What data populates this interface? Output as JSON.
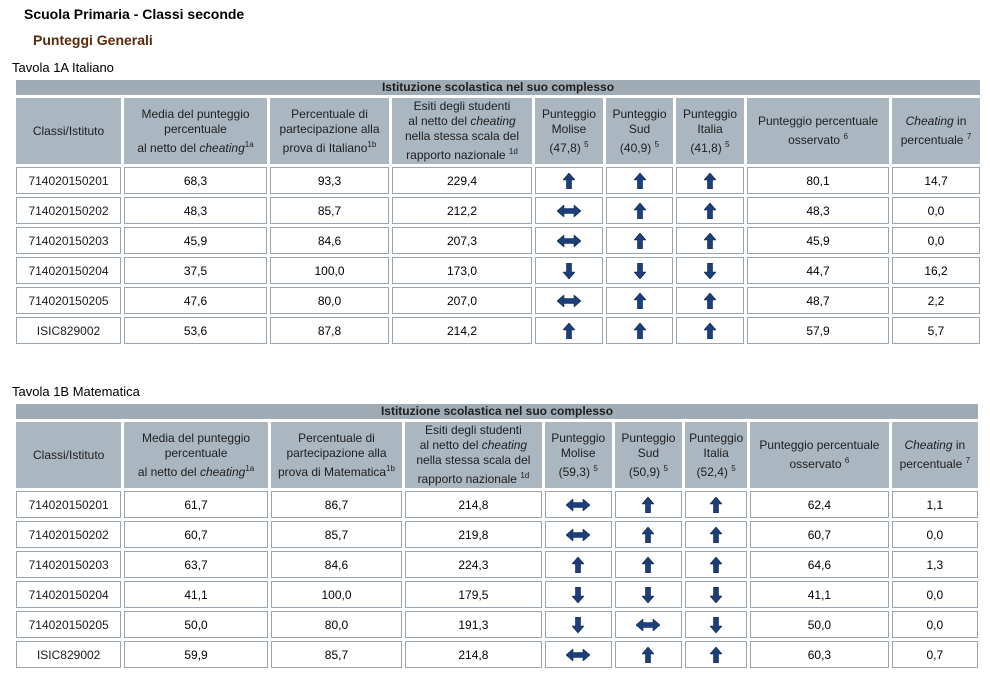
{
  "page": {
    "title": "Scuola Primaria - Classi seconde",
    "section": "Punteggi Generali"
  },
  "tables": [
    {
      "caption": "Tavola 1A Italiano",
      "banner": "Istituzione scolastica nel suo complesso",
      "headers": {
        "col1": "Classi/Istituto",
        "col2_a": "Media del punteggio",
        "col2_b": "percentuale",
        "col2_c": "al netto del ",
        "col2_em": "cheating",
        "col2_sup": "1a",
        "col3_a": "Percentuale di",
        "col3_b": "partecipazione alla",
        "col3_c": "prova di Italiano",
        "col3_sup": "1b",
        "col4_a": "Esiti degli studenti",
        "col4_b": "al netto del ",
        "col4_em": "cheating",
        "col4_c": "nella stessa scala del",
        "col4_d": "rapporto nazionale",
        "col4_sup": "1d",
        "col5_a": "Punteggio",
        "col5_b": "Molise",
        "col5_c": "(47,8)",
        "col5_sup": "5",
        "col6_a": "Punteggio",
        "col6_b": "Sud",
        "col6_c": "(40,9)",
        "col6_sup": "5",
        "col7_a": "Punteggio",
        "col7_b": "Italia",
        "col7_c": "(41,8)",
        "col7_sup": "5",
        "col8_a": "Punteggio percentuale",
        "col8_b": "osservato",
        "col8_sup": "6",
        "col9_em": "Cheating",
        "col9_a": " in",
        "col9_b": "percentuale",
        "col9_sup": "7"
      },
      "rows": [
        {
          "name": "714020150201",
          "media": "68,3",
          "partecipazione": "93,3",
          "esiti": "229,4",
          "molise": "up",
          "sud": "up",
          "italia": "up",
          "osservato": "80,1",
          "cheating": "14,7"
        },
        {
          "name": "714020150202",
          "media": "48,3",
          "partecipazione": "85,7",
          "esiti": "212,2",
          "molise": "equal",
          "sud": "up",
          "italia": "up",
          "osservato": "48,3",
          "cheating": "0,0"
        },
        {
          "name": "714020150203",
          "media": "45,9",
          "partecipazione": "84,6",
          "esiti": "207,3",
          "molise": "equal",
          "sud": "up",
          "italia": "up",
          "osservato": "45,9",
          "cheating": "0,0"
        },
        {
          "name": "714020150204",
          "media": "37,5",
          "partecipazione": "100,0",
          "esiti": "173,0",
          "molise": "down",
          "sud": "down",
          "italia": "down",
          "osservato": "44,7",
          "cheating": "16,2"
        },
        {
          "name": "714020150205",
          "media": "47,6",
          "partecipazione": "80,0",
          "esiti": "207,0",
          "molise": "equal",
          "sud": "up",
          "italia": "up",
          "osservato": "48,7",
          "cheating": "2,2"
        },
        {
          "name": "ISIC829002",
          "media": "53,6",
          "partecipazione": "87,8",
          "esiti": "214,2",
          "molise": "up",
          "sud": "up",
          "italia": "up",
          "osservato": "57,9",
          "cheating": "5,7"
        }
      ]
    },
    {
      "caption": "Tavola 1B Matematica",
      "banner": "Istituzione scolastica nel suo complesso",
      "headers": {
        "col1": "Classi/Istituto",
        "col2_a": "Media del punteggio",
        "col2_b": "percentuale",
        "col2_c": "al netto del ",
        "col2_em": "cheating",
        "col2_sup": "1a",
        "col3_a": "Percentuale di",
        "col3_b": "partecipazione alla",
        "col3_c": "prova di Matematica",
        "col3_sup": "1b",
        "col4_a": "Esiti degli studenti",
        "col4_b": "al netto del ",
        "col4_em": "cheating",
        "col4_c": "nella stessa scala del",
        "col4_d": "rapporto nazionale",
        "col4_sup": "1d",
        "col5_a": "Punteggio",
        "col5_b": "Molise",
        "col5_c": "(59,3)",
        "col5_sup": "5",
        "col6_a": "Punteggio",
        "col6_b": "Sud",
        "col6_c": "(50,9)",
        "col6_sup": "5",
        "col7_a": "Punteggio",
        "col7_b": "Italia",
        "col7_c": "(52,4)",
        "col7_sup": "5",
        "col8_a": "Punteggio percentuale",
        "col8_b": "osservato",
        "col8_sup": "6",
        "col9_em": "Cheating",
        "col9_a": " in",
        "col9_b": "percentuale",
        "col9_sup": "7"
      },
      "rows": [
        {
          "name": "714020150201",
          "media": "61,7",
          "partecipazione": "86,7",
          "esiti": "214,8",
          "molise": "equal",
          "sud": "up",
          "italia": "up",
          "osservato": "62,4",
          "cheating": "1,1"
        },
        {
          "name": "714020150202",
          "media": "60,7",
          "partecipazione": "85,7",
          "esiti": "219,8",
          "molise": "equal",
          "sud": "up",
          "italia": "up",
          "osservato": "60,7",
          "cheating": "0,0"
        },
        {
          "name": "714020150203",
          "media": "63,7",
          "partecipazione": "84,6",
          "esiti": "224,3",
          "molise": "up",
          "sud": "up",
          "italia": "up",
          "osservato": "64,6",
          "cheating": "1,3"
        },
        {
          "name": "714020150204",
          "media": "41,1",
          "partecipazione": "100,0",
          "esiti": "179,5",
          "molise": "down",
          "sud": "down",
          "italia": "down",
          "osservato": "41,1",
          "cheating": "0,0"
        },
        {
          "name": "714020150205",
          "media": "50,0",
          "partecipazione": "80,0",
          "esiti": "191,3",
          "molise": "down",
          "sud": "equal",
          "italia": "down",
          "osservato": "50,0",
          "cheating": "0,0"
        },
        {
          "name": "ISIC829002",
          "media": "59,9",
          "partecipazione": "85,7",
          "esiti": "214,8",
          "molise": "equal",
          "sud": "up",
          "italia": "up",
          "osservato": "60,3",
          "cheating": "0,7"
        }
      ]
    }
  ],
  "colors": {
    "header_bg": "#aab6c0",
    "banner_bg": "#9fabb5",
    "arrow_fill": "#1c3f7a",
    "section_title": "#5a2a0a"
  },
  "icons": {
    "up": "arrow-up-icon",
    "down": "arrow-down-icon",
    "equal": "arrow-left-right-icon"
  }
}
